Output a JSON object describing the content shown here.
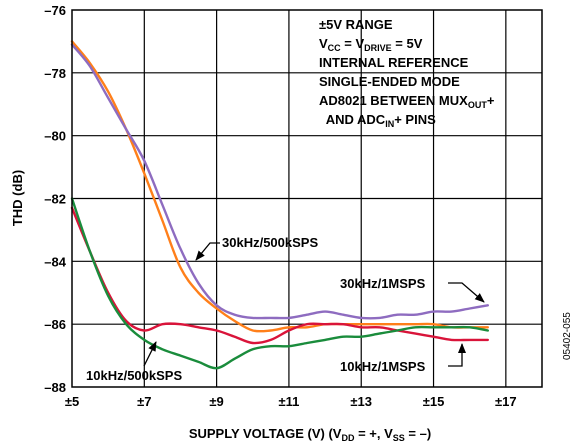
{
  "chart_data": {
    "type": "line",
    "xlabel": {
      "main": "SUPPLY VOLTAGE (V) (V",
      "s1": "DD",
      "m1": " = +, V",
      "s2": "SS",
      "m2": " = –)"
    },
    "ylabel": "THD (dB)",
    "xlim": [
      5,
      18
    ],
    "ylim": [
      -88,
      -76
    ],
    "xticks": [
      5,
      7,
      9,
      11,
      13,
      15,
      17
    ],
    "xtick_labels": [
      "±5",
      "±7",
      "±9",
      "±11",
      "±13",
      "±15",
      "±17"
    ],
    "yticks": [
      -88,
      -86,
      -84,
      -82,
      -80,
      -78,
      -76
    ],
    "ytick_labels": [
      "–88",
      "–86",
      "–84",
      "–82",
      "–80",
      "–78",
      "–76"
    ],
    "grid": true,
    "series": [
      {
        "name": "30kHz/500kSPS",
        "color": "#ff7f1a",
        "x": [
          5,
          5.5,
          6,
          6.5,
          7,
          7.5,
          8,
          8.5,
          9,
          9.5,
          10,
          10.5,
          11,
          11.5,
          12,
          12.5,
          13,
          13.5,
          14,
          14.5,
          15,
          15.5,
          16,
          16.5
        ],
        "y": [
          -77.0,
          -77.7,
          -78.6,
          -79.8,
          -81.2,
          -82.7,
          -84.2,
          -85.0,
          -85.5,
          -85.9,
          -86.2,
          -86.2,
          -86.1,
          -86.1,
          -86.0,
          -86.0,
          -86.0,
          -86.0,
          -86.0,
          -86.0,
          -86.0,
          -86.1,
          -86.1,
          -86.1
        ]
      },
      {
        "name": "30kHz/1MSPS",
        "color": "#8e6cc0",
        "x": [
          5,
          5.5,
          6,
          6.5,
          7,
          7.5,
          8,
          8.5,
          9,
          9.5,
          10,
          10.5,
          11,
          11.5,
          12,
          12.5,
          13,
          13.5,
          14,
          14.5,
          15,
          15.5,
          16,
          16.5
        ],
        "y": [
          -77.1,
          -77.8,
          -78.8,
          -79.8,
          -80.8,
          -82.2,
          -83.6,
          -84.7,
          -85.4,
          -85.7,
          -85.8,
          -85.8,
          -85.8,
          -85.7,
          -85.6,
          -85.7,
          -85.8,
          -85.8,
          -85.7,
          -85.7,
          -85.6,
          -85.6,
          -85.5,
          -85.4
        ]
      },
      {
        "name": "10kHz/1MSPS",
        "color": "#d9143a",
        "x": [
          5,
          5.5,
          6,
          6.5,
          7,
          7.5,
          8,
          8.5,
          9,
          9.5,
          10,
          10.5,
          11,
          11.5,
          12,
          12.5,
          13,
          13.5,
          14,
          14.5,
          15,
          15.5,
          16,
          16.5
        ],
        "y": [
          -82.3,
          -83.7,
          -85.0,
          -85.9,
          -86.2,
          -86.0,
          -86.0,
          -86.1,
          -86.2,
          -86.4,
          -86.6,
          -86.5,
          -86.2,
          -86.0,
          -86.0,
          -86.0,
          -86.1,
          -86.1,
          -86.2,
          -86.3,
          -86.4,
          -86.5,
          -86.5,
          -86.5
        ]
      },
      {
        "name": "10kHz/500kSPS",
        "color": "#1a8c3c",
        "x": [
          5,
          5.5,
          6,
          6.5,
          7,
          7.5,
          8,
          8.5,
          9,
          9.5,
          10,
          10.5,
          11,
          11.5,
          12,
          12.5,
          13,
          13.5,
          14,
          14.5,
          15,
          15.5,
          16,
          16.5
        ],
        "y": [
          -82.0,
          -83.7,
          -85.1,
          -86.0,
          -86.5,
          -86.8,
          -87.0,
          -87.2,
          -87.4,
          -87.1,
          -86.8,
          -86.7,
          -86.7,
          -86.6,
          -86.5,
          -86.4,
          -86.4,
          -86.3,
          -86.2,
          -86.1,
          -86.1,
          -86.1,
          -86.1,
          -86.2
        ]
      }
    ],
    "labels": {
      "s_30_500": "30kHz/500kSPS",
      "s_30_1m": "30kHz/1MSPS",
      "s_10_1m": "10kHz/1MSPS",
      "s_10_500": "10kHz/500kSPS"
    },
    "conditions": {
      "line1": "±5V RANGE",
      "line2": {
        "a": "V",
        "a_sub": "CC",
        "b": " = V",
        "b_sub": "DRIVE",
        "c": " = 5V"
      },
      "line3": "INTERNAL REFERENCE",
      "line4": "SINGLE-ENDED MODE",
      "line5": {
        "a": "AD8021 BETWEEN MUX",
        "a_sub": "OUT",
        "b": "+"
      },
      "line6": {
        "a": "  AND ADC",
        "a_sub": "IN",
        "b": "+ PINS"
      }
    },
    "figure_id": "05402-055"
  }
}
